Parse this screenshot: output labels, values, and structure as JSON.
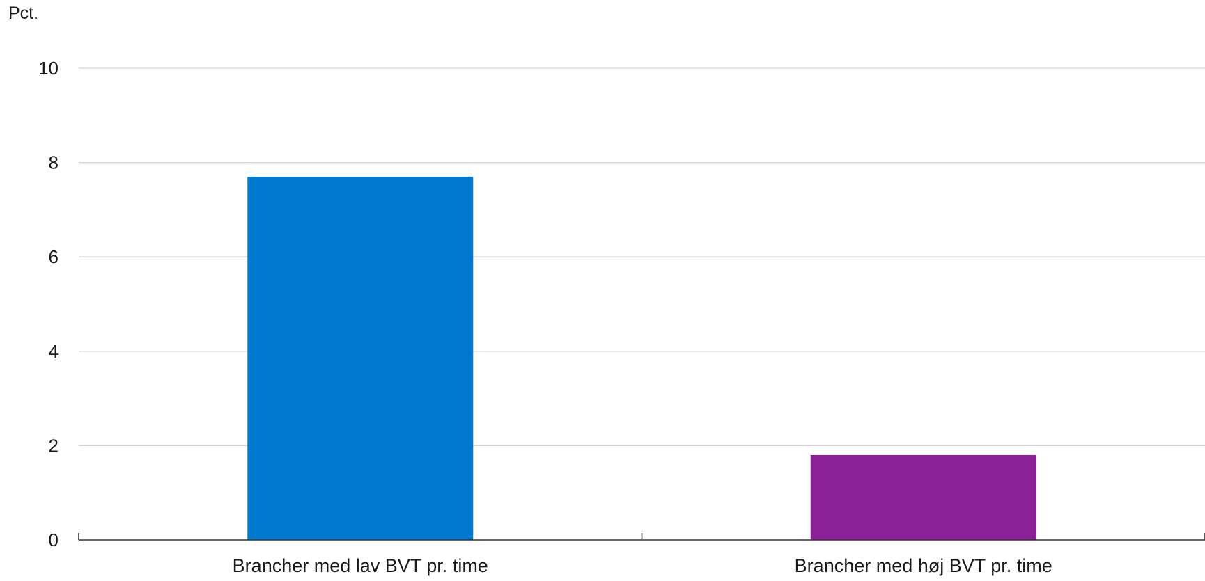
{
  "chart_data": {
    "type": "bar",
    "title": "",
    "xlabel": "",
    "ylabel": "Pct.",
    "categories": [
      "Brancher med lav BVT pr. time",
      "Brancher med høj BVT pr. time"
    ],
    "values": [
      7.7,
      1.8
    ],
    "colors": [
      "#0079d1",
      "#8d2199"
    ],
    "ylim": [
      0,
      10
    ],
    "yticks": [
      "0",
      "2",
      "4",
      "6",
      "8",
      "10"
    ],
    "grid": true,
    "legend": "none"
  }
}
